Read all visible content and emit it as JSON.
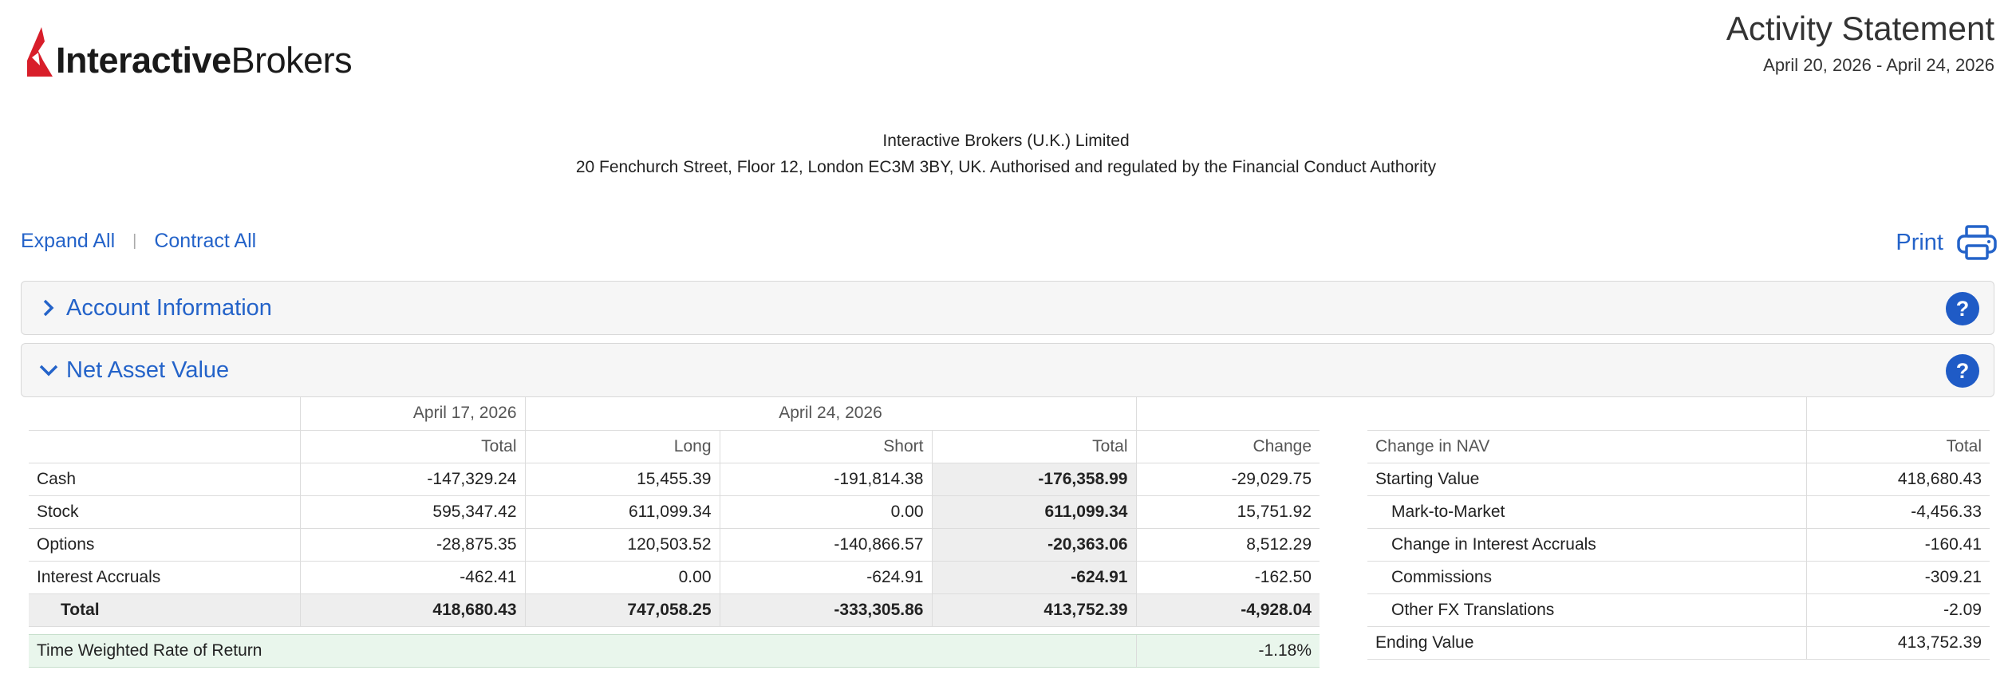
{
  "header": {
    "logo_bold": "Interactive",
    "logo_light": "Brokers",
    "statement_title": "Activity Statement",
    "statement_period": "April 20, 2026 - April 24, 2026"
  },
  "entity": {
    "name": "Interactive Brokers (U.K.) Limited",
    "address": "20 Fenchurch Street, Floor 12, London EC3M 3BY, UK. Authorised and regulated by the Financial Conduct Authority"
  },
  "controls": {
    "expand_all": "Expand All",
    "separator": "|",
    "contract_all": "Contract All",
    "print": "Print"
  },
  "sections": {
    "account_info": "Account Information",
    "nav": "Net Asset Value",
    "help": "?"
  },
  "nav_table": {
    "date_prev": "April 17, 2026",
    "date_curr": "April 24, 2026",
    "cols": [
      "Total",
      "Long",
      "Short",
      "Total",
      "Change"
    ],
    "rows": [
      {
        "label": "Cash",
        "prev_total": "-147,329.24",
        "long": "15,455.39",
        "short": "-191,814.38",
        "total": "-176,358.99",
        "change": "-29,029.75"
      },
      {
        "label": "Stock",
        "prev_total": "595,347.42",
        "long": "611,099.34",
        "short": "0.00",
        "total": "611,099.34",
        "change": "15,751.92"
      },
      {
        "label": "Options",
        "prev_total": "-28,875.35",
        "long": "120,503.52",
        "short": "-140,866.57",
        "total": "-20,363.06",
        "change": "8,512.29"
      },
      {
        "label": "Interest Accruals",
        "prev_total": "-462.41",
        "long": "0.00",
        "short": "-624.91",
        "total": "-624.91",
        "change": "-162.50"
      }
    ],
    "total_row": {
      "label": "Total",
      "prev_total": "418,680.43",
      "long": "747,058.25",
      "short": "-333,305.86",
      "total": "413,752.39",
      "change": "-4,928.04"
    },
    "twr": {
      "label": "Time Weighted Rate of Return",
      "value": "-1.18%"
    }
  },
  "change_table": {
    "header_label": "Change in NAV",
    "header_total": "Total",
    "rows": [
      {
        "label": "Starting Value",
        "value": "418,680.43",
        "indent": false
      },
      {
        "label": "Mark-to-Market",
        "value": "-4,456.33",
        "indent": true
      },
      {
        "label": "Change in Interest Accruals",
        "value": "-160.41",
        "indent": true
      },
      {
        "label": "Commissions",
        "value": "-309.21",
        "indent": true
      },
      {
        "label": "Other FX Translations",
        "value": "-2.09",
        "indent": true
      },
      {
        "label": "Ending Value",
        "value": "413,752.39",
        "indent": false
      }
    ]
  }
}
